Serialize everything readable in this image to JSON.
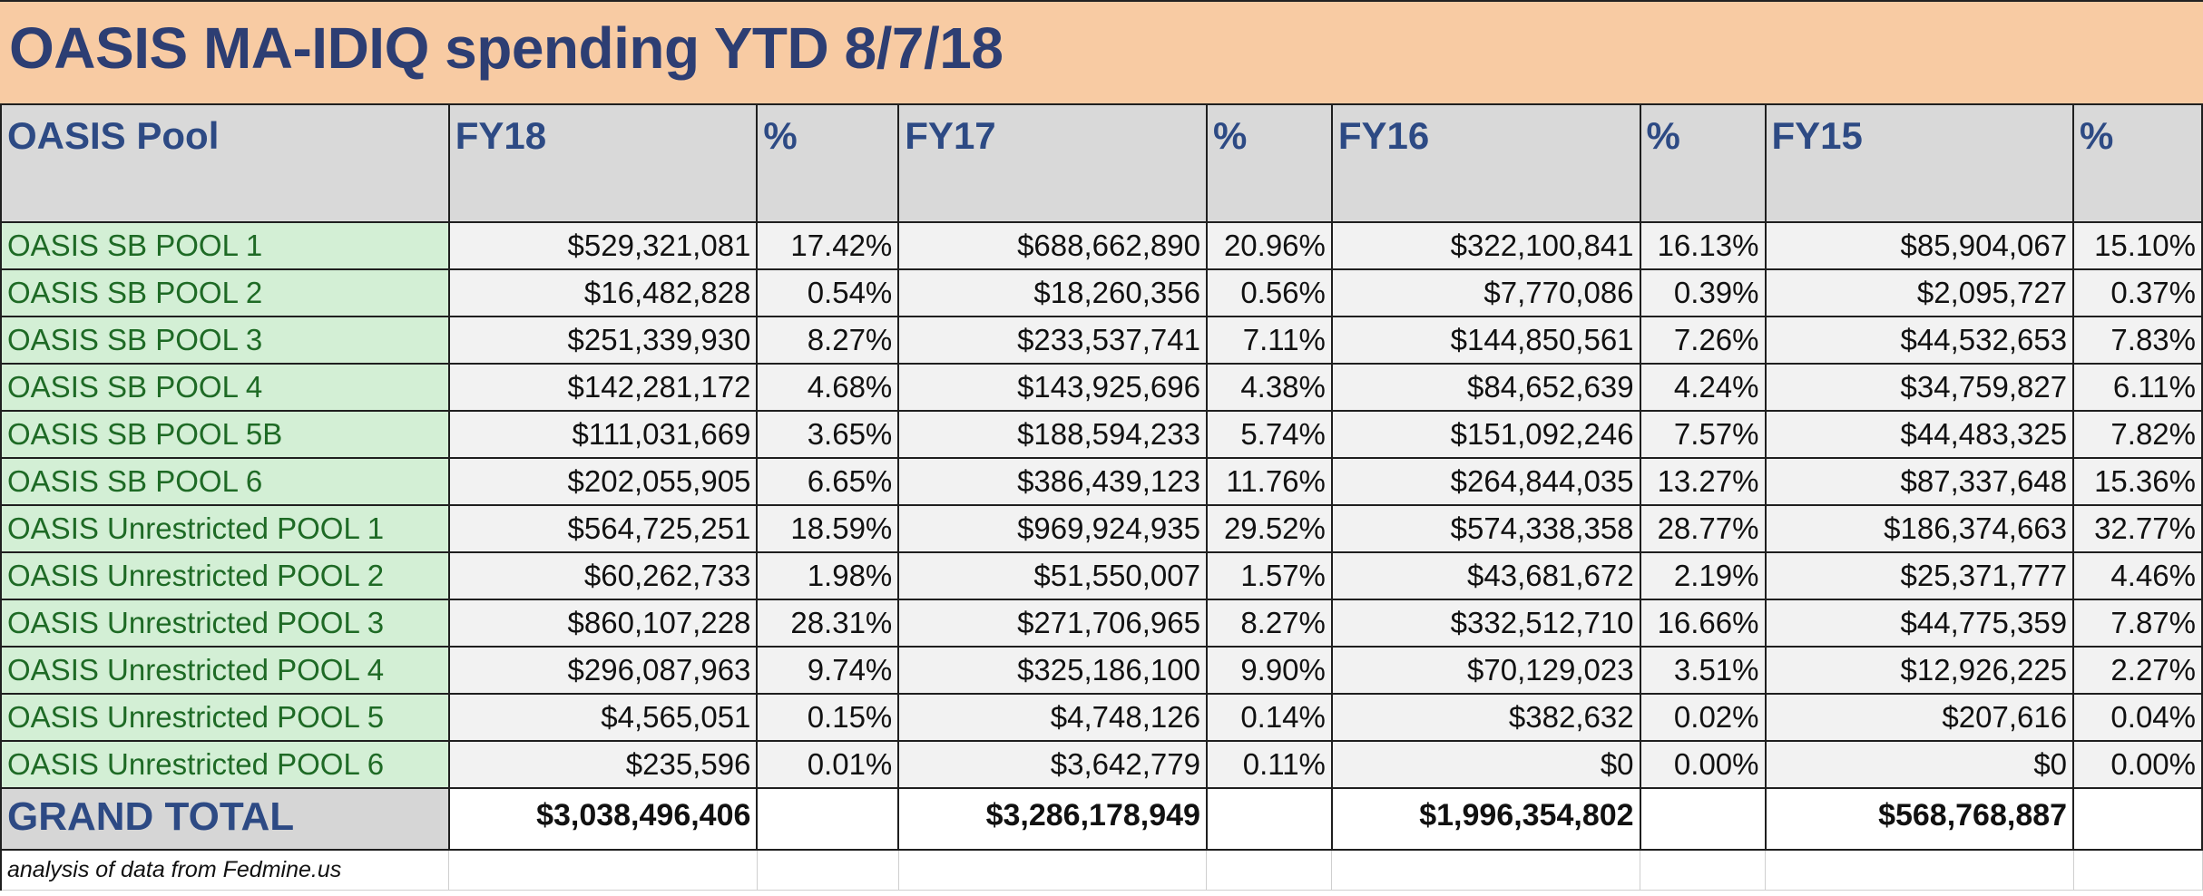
{
  "title": "OASIS MA-IDIQ spending YTD 8/7/18",
  "headers": [
    "OASIS Pool",
    "FY18",
    "%",
    "FY17",
    "%",
    "FY16",
    "%",
    "FY15",
    "%"
  ],
  "rows": [
    {
      "pool": "OASIS SB POOL 1",
      "fy18": "$529,321,081",
      "fy18_pct": "17.42%",
      "fy17": "$688,662,890",
      "fy17_pct": "20.96%",
      "fy16": "$322,100,841",
      "fy16_pct": "16.13%",
      "fy15": "$85,904,067",
      "fy15_pct": "15.10%"
    },
    {
      "pool": "OASIS SB POOL 2",
      "fy18": "$16,482,828",
      "fy18_pct": "0.54%",
      "fy17": "$18,260,356",
      "fy17_pct": "0.56%",
      "fy16": "$7,770,086",
      "fy16_pct": "0.39%",
      "fy15": "$2,095,727",
      "fy15_pct": "0.37%"
    },
    {
      "pool": "OASIS SB POOL 3",
      "fy18": "$251,339,930",
      "fy18_pct": "8.27%",
      "fy17": "$233,537,741",
      "fy17_pct": "7.11%",
      "fy16": "$144,850,561",
      "fy16_pct": "7.26%",
      "fy15": "$44,532,653",
      "fy15_pct": "7.83%"
    },
    {
      "pool": "OASIS SB POOL 4",
      "fy18": "$142,281,172",
      "fy18_pct": "4.68%",
      "fy17": "$143,925,696",
      "fy17_pct": "4.38%",
      "fy16": "$84,652,639",
      "fy16_pct": "4.24%",
      "fy15": "$34,759,827",
      "fy15_pct": "6.11%"
    },
    {
      "pool": "OASIS SB POOL 5B",
      "fy18": "$111,031,669",
      "fy18_pct": "3.65%",
      "fy17": "$188,594,233",
      "fy17_pct": "5.74%",
      "fy16": "$151,092,246",
      "fy16_pct": "7.57%",
      "fy15": "$44,483,325",
      "fy15_pct": "7.82%"
    },
    {
      "pool": "OASIS SB POOL 6",
      "fy18": "$202,055,905",
      "fy18_pct": "6.65%",
      "fy17": "$386,439,123",
      "fy17_pct": "11.76%",
      "fy16": "$264,844,035",
      "fy16_pct": "13.27%",
      "fy15": "$87,337,648",
      "fy15_pct": "15.36%"
    },
    {
      "pool": "OASIS Unrestricted POOL 1",
      "fy18": "$564,725,251",
      "fy18_pct": "18.59%",
      "fy17": "$969,924,935",
      "fy17_pct": "29.52%",
      "fy16": "$574,338,358",
      "fy16_pct": "28.77%",
      "fy15": "$186,374,663",
      "fy15_pct": "32.77%"
    },
    {
      "pool": "OASIS Unrestricted POOL 2",
      "fy18": "$60,262,733",
      "fy18_pct": "1.98%",
      "fy17": "$51,550,007",
      "fy17_pct": "1.57%",
      "fy16": "$43,681,672",
      "fy16_pct": "2.19%",
      "fy15": "$25,371,777",
      "fy15_pct": "4.46%"
    },
    {
      "pool": "OASIS Unrestricted POOL 3",
      "fy18": "$860,107,228",
      "fy18_pct": "28.31%",
      "fy17": "$271,706,965",
      "fy17_pct": "8.27%",
      "fy16": "$332,512,710",
      "fy16_pct": "16.66%",
      "fy15": "$44,775,359",
      "fy15_pct": "7.87%"
    },
    {
      "pool": "OASIS Unrestricted POOL 4",
      "fy18": "$296,087,963",
      "fy18_pct": "9.74%",
      "fy17": "$325,186,100",
      "fy17_pct": "9.90%",
      "fy16": "$70,129,023",
      "fy16_pct": "3.51%",
      "fy15": "$12,926,225",
      "fy15_pct": "2.27%"
    },
    {
      "pool": "OASIS Unrestricted POOL 5",
      "fy18": "$4,565,051",
      "fy18_pct": "0.15%",
      "fy17": "$4,748,126",
      "fy17_pct": "0.14%",
      "fy16": "$382,632",
      "fy16_pct": "0.02%",
      "fy15": "$207,616",
      "fy15_pct": "0.04%"
    },
    {
      "pool": "OASIS Unrestricted POOL 6",
      "fy18": "$235,596",
      "fy18_pct": "0.01%",
      "fy17": "$3,642,779",
      "fy17_pct": "0.11%",
      "fy16": "$0",
      "fy16_pct": "0.00%",
      "fy15": "$0",
      "fy15_pct": "0.00%"
    }
  ],
  "total": {
    "label": "GRAND TOTAL",
    "fy18": "$3,038,496,406",
    "fy17": "$3,286,178,949",
    "fy16": "$1,996,354,802",
    "fy15": "$568,768,887"
  },
  "footnote": "analysis of data from Fedmine.us",
  "colors": {
    "title_bg": "#f8cba3",
    "header_bg": "#d9d9d9",
    "pool_bg": "#d3efd5",
    "title_text": "#2d3e73"
  }
}
